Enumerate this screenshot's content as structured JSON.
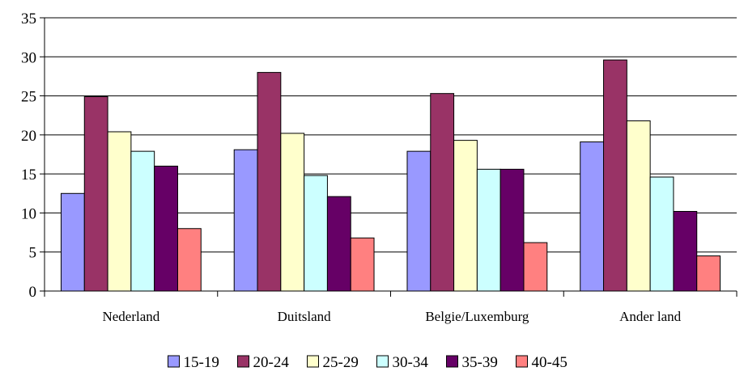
{
  "chart_data": {
    "type": "bar",
    "title": "",
    "xlabel": "",
    "ylabel": "",
    "categories": [
      "Nederland",
      "Duitsland",
      "Belgie/Luxemburg",
      "Ander land"
    ],
    "series": [
      {
        "name": "15-19",
        "color": "#9999ff",
        "values": [
          12.5,
          18.1,
          17.9,
          19.1
        ]
      },
      {
        "name": "20-24",
        "color": "#993366",
        "values": [
          24.9,
          28.0,
          25.3,
          29.6
        ]
      },
      {
        "name": "25-29",
        "color": "#ffffcc",
        "values": [
          20.4,
          20.2,
          19.3,
          21.8
        ]
      },
      {
        "name": "30-34",
        "color": "#ccffff",
        "values": [
          17.9,
          14.8,
          15.6,
          14.6
        ]
      },
      {
        "name": "35-39",
        "color": "#660066",
        "values": [
          16.0,
          12.1,
          15.6,
          10.2
        ]
      },
      {
        "name": "40-45",
        "color": "#ff8080",
        "values": [
          8.0,
          6.8,
          6.2,
          4.5
        ]
      }
    ],
    "ylim": [
      0,
      35
    ],
    "yticks": [
      "0",
      "5",
      "10",
      "15",
      "20",
      "25",
      "30",
      "35"
    ],
    "grid": true,
    "legend_position": "bottom"
  }
}
